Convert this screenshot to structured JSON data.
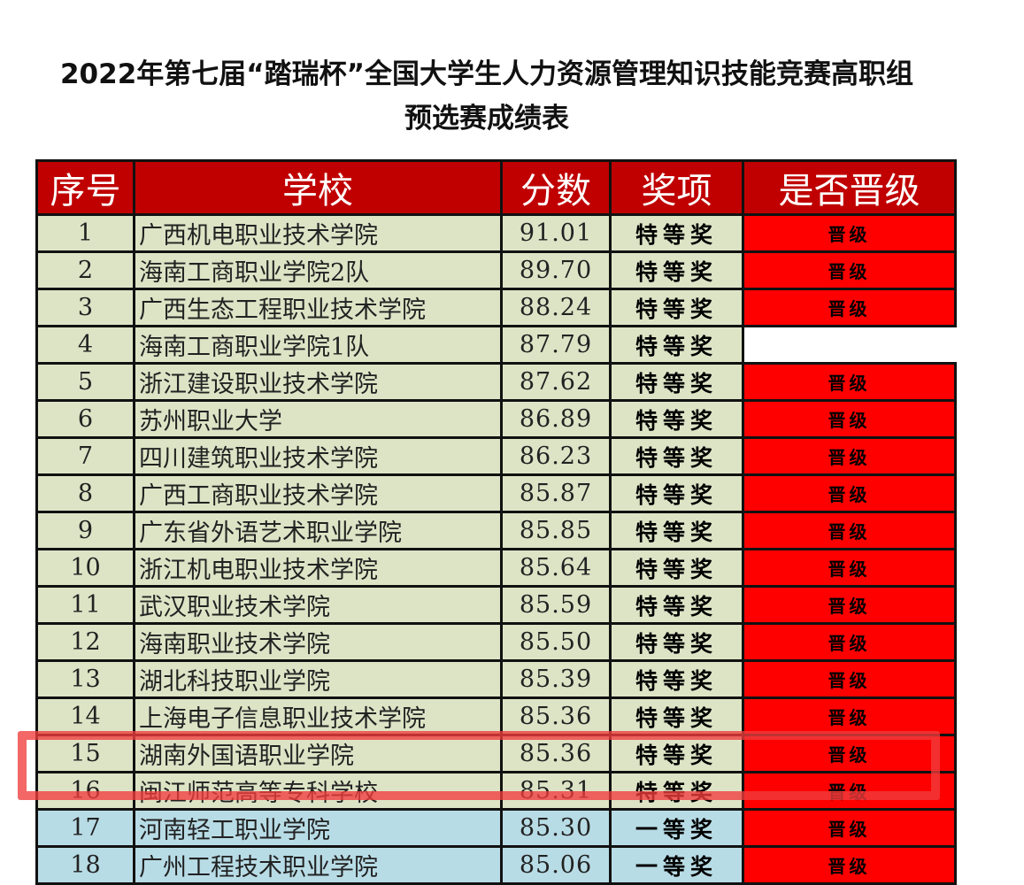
{
  "title_line1": "2022年第七届“踏瑞杯”全国大学生人力资源管理知识技能竞赛高职组",
  "title_line2": "预选赛成绩表",
  "columns": [
    "序号",
    "学校",
    "分数",
    "奖项",
    "是否晋级"
  ],
  "colors": {
    "header": "#c00000",
    "row_special": "#dde4c6",
    "row_first": "#b8dce6",
    "qualified": "#ff0000",
    "highlight": "#f03c3c"
  },
  "highlighted_row": 16,
  "rows": [
    {
      "no": "1",
      "school": "广西机电职业技术学院",
      "score": "91.01",
      "award": "特等奖",
      "qualified": "晋级"
    },
    {
      "no": "2",
      "school": "海南工商职业学院2队",
      "score": "89.70",
      "award": "特等奖",
      "qualified": "晋级"
    },
    {
      "no": "3",
      "school": "广西生态工程职业技术学院",
      "score": "88.24",
      "award": "特等奖",
      "qualified": "晋级"
    },
    {
      "no": "4",
      "school": "海南工商职业学院1队",
      "score": "87.79",
      "award": "特等奖",
      "qualified": ""
    },
    {
      "no": "5",
      "school": "浙江建设职业技术学院",
      "score": "87.62",
      "award": "特等奖",
      "qualified": "晋级"
    },
    {
      "no": "6",
      "school": "苏州职业大学",
      "score": "86.89",
      "award": "特等奖",
      "qualified": "晋级"
    },
    {
      "no": "7",
      "school": "四川建筑职业技术学院",
      "score": "86.23",
      "award": "特等奖",
      "qualified": "晋级"
    },
    {
      "no": "8",
      "school": "广西工商职业技术学院",
      "score": "85.87",
      "award": "特等奖",
      "qualified": "晋级"
    },
    {
      "no": "9",
      "school": "广东省外语艺术职业学院",
      "score": "85.85",
      "award": "特等奖",
      "qualified": "晋级"
    },
    {
      "no": "10",
      "school": "浙江机电职业技术学院",
      "score": "85.64",
      "award": "特等奖",
      "qualified": "晋级"
    },
    {
      "no": "11",
      "school": "武汉职业技术学院",
      "score": "85.59",
      "award": "特等奖",
      "qualified": "晋级"
    },
    {
      "no": "12",
      "school": "海南职业技术学院",
      "score": "85.50",
      "award": "特等奖",
      "qualified": "晋级"
    },
    {
      "no": "13",
      "school": "湖北科技职业学院",
      "score": "85.39",
      "award": "特等奖",
      "qualified": "晋级"
    },
    {
      "no": "14",
      "school": "上海电子信息职业技术学院",
      "score": "85.36",
      "award": "特等奖",
      "qualified": "晋级"
    },
    {
      "no": "15",
      "school": "湖南外国语职业学院",
      "score": "85.36",
      "award": "特等奖",
      "qualified": "晋级"
    },
    {
      "no": "16",
      "school": "闽江师范高等专科学校",
      "score": "85.31",
      "award": "特等奖",
      "qualified": "晋级"
    },
    {
      "no": "17",
      "school": "河南轻工职业学院",
      "score": "85.30",
      "award": "一等奖",
      "qualified": "晋级"
    },
    {
      "no": "18",
      "school": "广州工程技术职业学院",
      "score": "85.06",
      "award": "一等奖",
      "qualified": "晋级"
    }
  ]
}
